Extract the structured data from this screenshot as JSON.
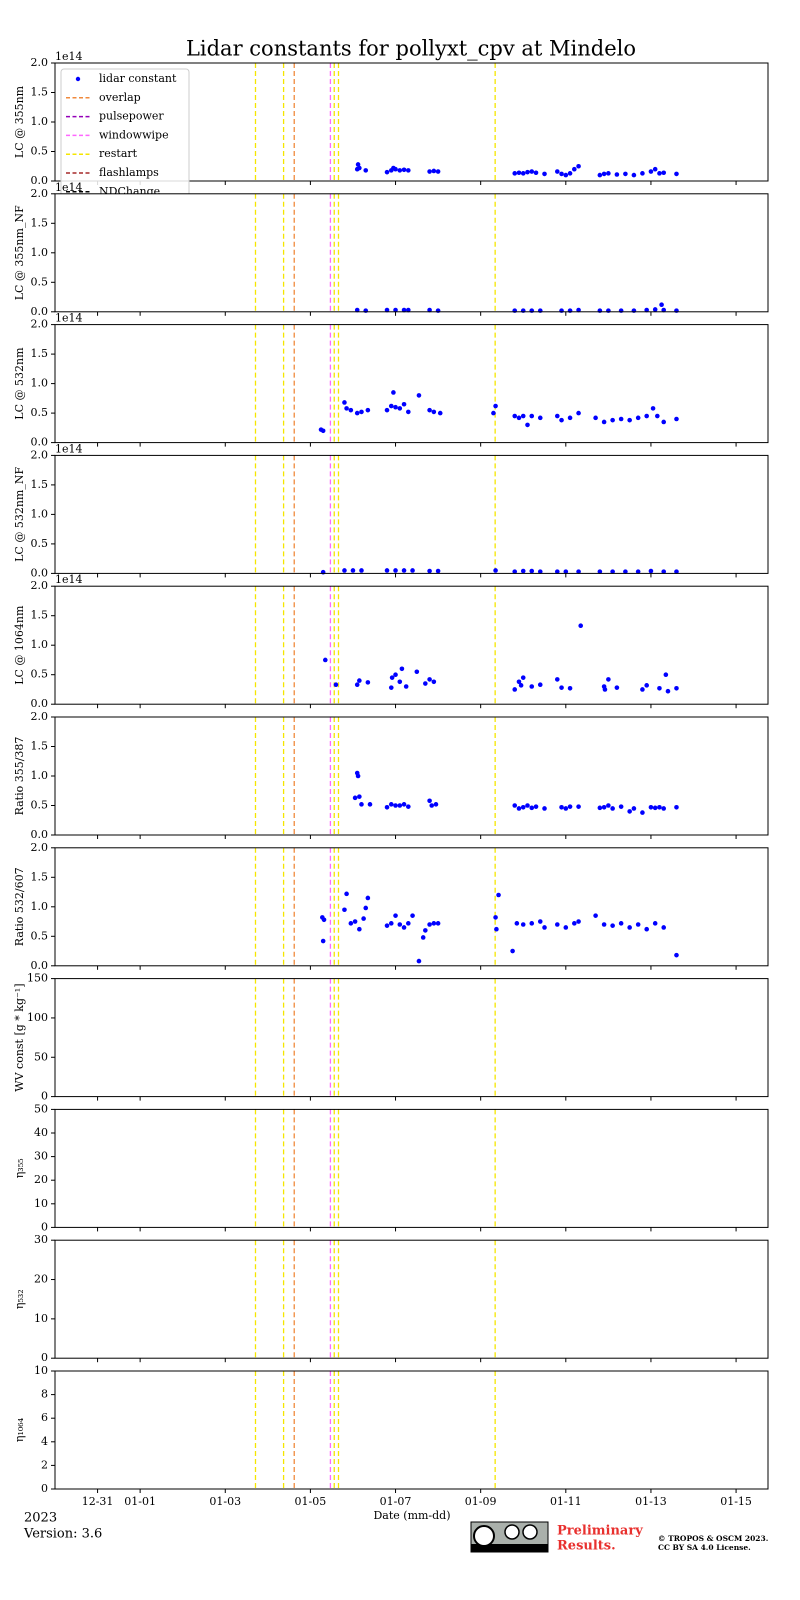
{
  "title": "Lidar constants for pollyxt_cpv at Mindelo",
  "x_axis": {
    "label": "Date (mm-dd)",
    "xlim": [
      -1,
      15.75
    ],
    "xticks": [
      {
        "value": 0,
        "label": "12-31"
      },
      {
        "value": 1,
        "label": "01-01"
      },
      {
        "value": 3,
        "label": "01-03"
      },
      {
        "value": 5,
        "label": "01-05"
      },
      {
        "value": 7,
        "label": "01-07"
      },
      {
        "value": 9,
        "label": "01-09"
      },
      {
        "value": 11,
        "label": "01-11"
      },
      {
        "value": 13,
        "label": "01-13"
      },
      {
        "value": 15,
        "label": "01-15"
      }
    ]
  },
  "legend": [
    {
      "name": "lidar constant",
      "color": "#0000ff",
      "marker": "dot"
    },
    {
      "name": "overlap",
      "color": "#f08a3c",
      "marker": "dash"
    },
    {
      "name": "pulsepower",
      "color": "#9400b8",
      "marker": "dash"
    },
    {
      "name": "windowwipe",
      "color": "#ff66ff",
      "marker": "dash"
    },
    {
      "name": "restart",
      "color": "#f5e600",
      "marker": "dash"
    },
    {
      "name": "flashlamps",
      "color": "#a52a2a",
      "marker": "dash"
    },
    {
      "name": "NDChange",
      "color": "#000000",
      "marker": "dash"
    }
  ],
  "events": [
    {
      "name": "restart",
      "x": 3.71
    },
    {
      "name": "restart",
      "x": 4.37
    },
    {
      "name": "overlap",
      "x": 4.62
    },
    {
      "name": "windowwipe",
      "x": 5.47
    },
    {
      "name": "restart",
      "x": 5.56
    },
    {
      "name": "restart",
      "x": 5.66
    },
    {
      "name": "restart",
      "x": 9.34
    }
  ],
  "chart_data": [
    {
      "type": "scatter",
      "ylabel": "LC @ 355nm",
      "offset_label": "1e14",
      "ylim": [
        0,
        2
      ],
      "yticks": [
        {
          "value": 0,
          "label": "0.0"
        },
        0.5,
        {
          "value": 1,
          "label": "1.0"
        },
        1.5,
        {
          "value": 2,
          "label": "2.0"
        }
      ],
      "series": [
        {
          "color": "#0000ff",
          "x": [
            6.1,
            6.12,
            6.15,
            6.3,
            6.8,
            6.9,
            6.95,
            7.0,
            7.1,
            7.2,
            7.3,
            7.8,
            7.9,
            8.0,
            9.8,
            9.9,
            10.0,
            10.1,
            10.2,
            10.3,
            10.5,
            10.8,
            10.9,
            11.0,
            11.1,
            11.2,
            11.3,
            11.8,
            11.9,
            12.0,
            12.2,
            12.4,
            12.6,
            12.8,
            13.0,
            13.1,
            13.2,
            13.3,
            13.6
          ],
          "values": [
            0.2,
            0.28,
            0.22,
            0.18,
            0.15,
            0.18,
            0.22,
            0.2,
            0.18,
            0.19,
            0.18,
            0.16,
            0.17,
            0.16,
            0.13,
            0.14,
            0.13,
            0.15,
            0.16,
            0.14,
            0.12,
            0.16,
            0.12,
            0.1,
            0.13,
            0.2,
            0.25,
            0.1,
            0.12,
            0.13,
            0.11,
            0.12,
            0.1,
            0.13,
            0.16,
            0.2,
            0.13,
            0.14,
            0.12
          ]
        }
      ]
    },
    {
      "type": "scatter",
      "ylabel": "LC @ 355nm_NF",
      "offset_label": "1e14",
      "ylim": [
        0,
        2
      ],
      "yticks": [
        {
          "value": 0,
          "label": "0.0"
        },
        0.5,
        {
          "value": 1,
          "label": "1.0"
        },
        1.5,
        {
          "value": 2,
          "label": "2.0"
        }
      ],
      "series": [
        {
          "color": "#0000ff",
          "x": [
            6.1,
            6.3,
            6.8,
            7.0,
            7.2,
            7.3,
            7.8,
            8.0,
            9.8,
            10.0,
            10.2,
            10.4,
            10.9,
            11.1,
            11.3,
            11.8,
            12.0,
            12.3,
            12.6,
            12.9,
            13.1,
            13.25,
            13.3,
            13.6
          ],
          "values": [
            0.03,
            0.02,
            0.03,
            0.03,
            0.03,
            0.03,
            0.03,
            0.02,
            0.02,
            0.02,
            0.02,
            0.02,
            0.02,
            0.02,
            0.03,
            0.02,
            0.02,
            0.02,
            0.02,
            0.03,
            0.04,
            0.12,
            0.03,
            0.02
          ]
        }
      ]
    },
    {
      "type": "scatter",
      "ylabel": "LC @ 532nm",
      "offset_label": "1e14",
      "ylim": [
        0,
        2
      ],
      "yticks": [
        {
          "value": 0,
          "label": "0.0"
        },
        0.5,
        {
          "value": 1,
          "label": "1.0"
        },
        1.5,
        {
          "value": 2,
          "label": "2.0"
        }
      ],
      "series": [
        {
          "color": "#0000ff",
          "x": [
            5.25,
            5.3,
            5.8,
            5.85,
            5.95,
            6.1,
            6.2,
            6.35,
            6.8,
            6.9,
            6.95,
            7.0,
            7.1,
            7.2,
            7.3,
            7.55,
            7.8,
            7.9,
            8.05,
            9.3,
            9.35,
            9.8,
            9.9,
            10.0,
            10.1,
            10.2,
            10.4,
            10.8,
            10.9,
            11.1,
            11.3,
            11.7,
            11.9,
            12.1,
            12.3,
            12.5,
            12.7,
            12.9,
            13.05,
            13.15,
            13.3,
            13.6
          ],
          "values": [
            0.22,
            0.2,
            0.68,
            0.58,
            0.55,
            0.5,
            0.52,
            0.55,
            0.55,
            0.62,
            0.85,
            0.6,
            0.58,
            0.65,
            0.52,
            0.8,
            0.55,
            0.52,
            0.5,
            0.5,
            0.62,
            0.45,
            0.42,
            0.45,
            0.3,
            0.45,
            0.42,
            0.45,
            0.38,
            0.42,
            0.5,
            0.42,
            0.35,
            0.38,
            0.4,
            0.38,
            0.42,
            0.45,
            0.58,
            0.45,
            0.35,
            0.4
          ]
        }
      ]
    },
    {
      "type": "scatter",
      "ylabel": "LC @ 532nm_NF",
      "offset_label": "1e14",
      "ylim": [
        0,
        2
      ],
      "yticks": [
        {
          "value": 0,
          "label": "0.0"
        },
        0.5,
        {
          "value": 1,
          "label": "1.0"
        },
        1.5,
        {
          "value": 2,
          "label": "2.0"
        }
      ],
      "series": [
        {
          "color": "#0000ff",
          "x": [
            5.3,
            5.8,
            6.0,
            6.2,
            6.8,
            7.0,
            7.2,
            7.4,
            7.8,
            8.0,
            9.35,
            9.8,
            10.0,
            10.2,
            10.4,
            10.8,
            11.0,
            11.3,
            11.8,
            12.1,
            12.4,
            12.7,
            13.0,
            13.3,
            13.6
          ],
          "values": [
            0.02,
            0.05,
            0.05,
            0.05,
            0.05,
            0.05,
            0.05,
            0.05,
            0.04,
            0.04,
            0.05,
            0.03,
            0.04,
            0.04,
            0.03,
            0.03,
            0.03,
            0.03,
            0.03,
            0.03,
            0.03,
            0.03,
            0.04,
            0.03,
            0.03
          ]
        }
      ]
    },
    {
      "type": "scatter",
      "ylabel": "LC @ 1064nm",
      "offset_label": "1e14",
      "ylim": [
        0,
        2
      ],
      "yticks": [
        {
          "value": 0,
          "label": "0.0"
        },
        0.5,
        {
          "value": 1,
          "label": "1.0"
        },
        1.5,
        {
          "value": 2,
          "label": "2.0"
        }
      ],
      "series": [
        {
          "color": "#0000ff",
          "x": [
            5.35,
            5.6,
            6.1,
            6.15,
            6.35,
            6.9,
            6.92,
            7.0,
            7.1,
            7.15,
            7.25,
            7.5,
            7.7,
            7.8,
            7.9,
            9.8,
            9.9,
            9.95,
            10.0,
            10.2,
            10.4,
            10.8,
            10.9,
            11.1,
            11.35,
            11.9,
            11.92,
            12.0,
            12.2,
            12.8,
            12.9,
            13.2,
            13.35,
            13.4,
            13.6
          ],
          "values": [
            0.75,
            0.33,
            0.33,
            0.4,
            0.37,
            0.28,
            0.45,
            0.5,
            0.38,
            0.6,
            0.3,
            0.55,
            0.35,
            0.42,
            0.38,
            0.25,
            0.38,
            0.32,
            0.45,
            0.3,
            0.33,
            0.42,
            0.28,
            0.27,
            1.33,
            0.3,
            0.25,
            0.42,
            0.28,
            0.25,
            0.32,
            0.27,
            0.5,
            0.22,
            0.27
          ]
        }
      ]
    },
    {
      "type": "scatter",
      "ylabel": "Ratio 355/387",
      "ylim": [
        0,
        2
      ],
      "yticks": [
        {
          "value": 0,
          "label": "0.0"
        },
        0.5,
        {
          "value": 1,
          "label": "1.0"
        },
        1.5,
        {
          "value": 2,
          "label": "2.0"
        }
      ],
      "series": [
        {
          "color": "#0000ff",
          "x": [
            6.05,
            6.1,
            6.12,
            6.15,
            6.2,
            6.4,
            6.8,
            6.9,
            7.0,
            7.1,
            7.2,
            7.3,
            7.8,
            7.85,
            7.95,
            9.8,
            9.9,
            10.0,
            10.1,
            10.2,
            10.3,
            10.5,
            10.9,
            11.0,
            11.1,
            11.3,
            11.8,
            11.9,
            12.0,
            12.1,
            12.3,
            12.5,
            12.6,
            12.8,
            13.0,
            13.1,
            13.2,
            13.3,
            13.6
          ],
          "values": [
            0.63,
            1.05,
            1.0,
            0.65,
            0.52,
            0.52,
            0.47,
            0.52,
            0.5,
            0.5,
            0.52,
            0.48,
            0.58,
            0.5,
            0.52,
            0.5,
            0.45,
            0.47,
            0.5,
            0.46,
            0.48,
            0.45,
            0.47,
            0.45,
            0.48,
            0.48,
            0.46,
            0.47,
            0.5,
            0.45,
            0.48,
            0.4,
            0.45,
            0.38,
            0.47,
            0.46,
            0.47,
            0.45,
            0.47
          ]
        }
      ]
    },
    {
      "type": "scatter",
      "ylabel": "Ratio 532/607",
      "ylim": [
        0,
        2
      ],
      "yticks": [
        {
          "value": 0,
          "label": "0.0"
        },
        0.5,
        {
          "value": 1,
          "label": "1.0"
        },
        1.5,
        {
          "value": 2,
          "label": "2.0"
        }
      ],
      "series": [
        {
          "color": "#0000ff",
          "x": [
            5.28,
            5.3,
            5.32,
            5.8,
            5.85,
            5.95,
            6.05,
            6.15,
            6.25,
            6.3,
            6.35,
            6.8,
            6.9,
            7.0,
            7.1,
            7.2,
            7.3,
            7.4,
            7.55,
            7.65,
            7.7,
            7.8,
            7.9,
            8.0,
            9.35,
            9.37,
            9.42,
            9.75,
            9.85,
            10.0,
            10.2,
            10.4,
            10.5,
            10.8,
            11.0,
            11.2,
            11.3,
            11.7,
            11.9,
            12.1,
            12.3,
            12.5,
            12.7,
            12.9,
            13.1,
            13.3,
            13.6
          ],
          "values": [
            0.82,
            0.42,
            0.78,
            0.95,
            1.22,
            0.72,
            0.75,
            0.62,
            0.8,
            0.98,
            1.15,
            0.68,
            0.72,
            0.85,
            0.7,
            0.65,
            0.72,
            0.85,
            0.08,
            0.48,
            0.6,
            0.7,
            0.72,
            0.72,
            0.82,
            0.62,
            1.2,
            0.25,
            0.72,
            0.7,
            0.72,
            0.75,
            0.65,
            0.7,
            0.65,
            0.72,
            0.75,
            0.85,
            0.7,
            0.68,
            0.72,
            0.65,
            0.7,
            0.62,
            0.72,
            0.65,
            0.18
          ]
        }
      ]
    },
    {
      "type": "scatter",
      "ylabel": "WV const [g * kg⁻¹]",
      "ylim": [
        0,
        150
      ],
      "yticks": [
        0,
        50,
        100,
        150
      ],
      "series": []
    },
    {
      "type": "scatter",
      "ylabel": "η₃₅₅",
      "ylim": [
        0,
        50
      ],
      "yticks": [
        0,
        10,
        20,
        30,
        40,
        50
      ],
      "series": []
    },
    {
      "type": "scatter",
      "ylabel": "η₅₃₂",
      "ylim": [
        0,
        30
      ],
      "yticks": [
        0,
        10,
        20,
        30
      ],
      "series": []
    },
    {
      "type": "scatter",
      "ylabel": "η₁₀₆₄",
      "ylim": [
        0,
        10
      ],
      "yticks": [
        0,
        2,
        4,
        6,
        8,
        10
      ],
      "series": []
    }
  ],
  "footer": {
    "year": "2023",
    "version": "Version: 3.6",
    "preliminary": [
      "Preliminary",
      "Results."
    ],
    "copyright": [
      "© TROPOS & OSCM 2023.",
      "CC BY SA 4.0 License."
    ]
  }
}
